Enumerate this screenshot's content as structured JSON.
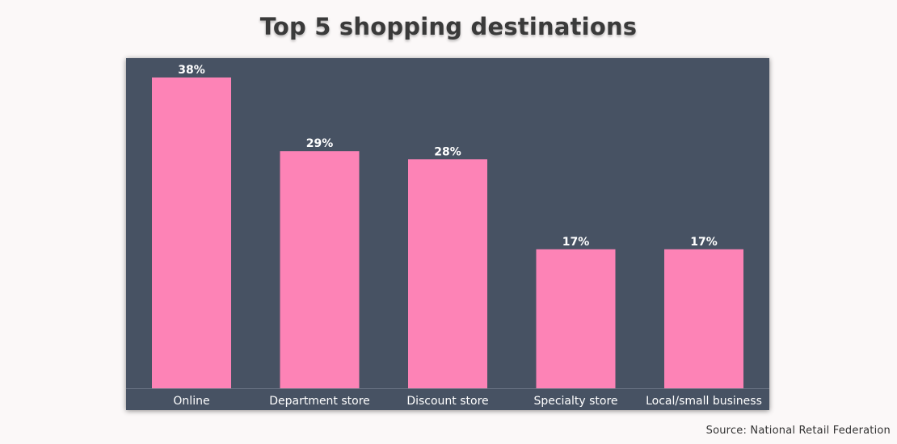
{
  "page": {
    "title": "Top 5 shopping destinations",
    "source": "Source: National Retail Federation"
  },
  "colors": {
    "panel_background": "#475263",
    "bar": "#fd83b6",
    "data_label": "#ffffff",
    "axis_label": "#ffffff",
    "baseline": "#6b7585"
  },
  "chart_data": {
    "type": "bar",
    "title": "Top 5 shopping destinations",
    "categories": [
      "Online",
      "Department store",
      "Discount store",
      "Specialty store",
      "Local/small business"
    ],
    "values": [
      38,
      29,
      28,
      17,
      17
    ],
    "value_labels": [
      "38%",
      "29%",
      "28%",
      "17%",
      "17%"
    ],
    "unit": "%",
    "xlabel": "",
    "ylabel": "",
    "ylim": [
      0,
      38
    ],
    "grid": false,
    "legend": "none"
  }
}
